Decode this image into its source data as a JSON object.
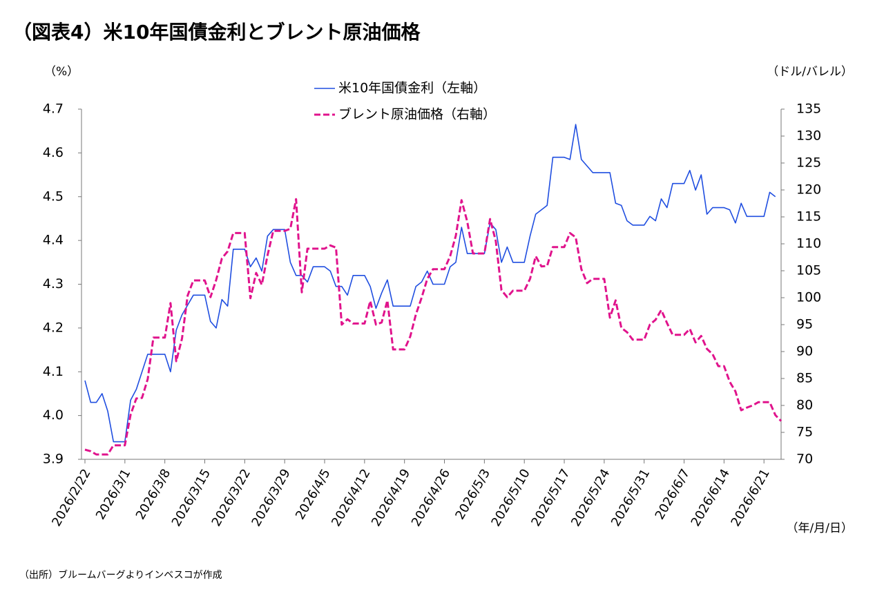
{
  "chart_data": {
    "type": "line",
    "title": "（図表4）米10年国債金利とブレント原油価格",
    "y_label": "（%）",
    "y2_label": "（ドル/バレル）",
    "x_label": "（年/月/日）",
    "source": "（出所）ブルームバーグよりインベスコが作成",
    "xlim": [
      "2026/2/22",
      "2026/6/24"
    ],
    "xticks": [
      "2026/2/22",
      "2026/3/1",
      "2026/3/8",
      "2026/3/15",
      "2026/3/22",
      "2026/3/29",
      "2026/4/5",
      "2026/4/12",
      "2026/4/19",
      "2026/4/26",
      "2026/5/3",
      "2026/5/10",
      "2026/5/17",
      "2026/5/24",
      "2026/5/31",
      "2026/6/7",
      "2026/6/14",
      "2026/6/21"
    ],
    "ylim": [
      3.9,
      4.7
    ],
    "yticks": [
      3.9,
      {
        "value": 4,
        "label": "4.0"
      },
      4.1,
      4.2,
      4.3,
      4.4,
      4.5,
      4.6,
      4.7
    ],
    "y2lim": [
      70,
      135
    ],
    "y2ticks": [
      70,
      75,
      80,
      85,
      90,
      95,
      100,
      105,
      110,
      115,
      120,
      125,
      130,
      135
    ],
    "series": [
      {
        "name": "米10年国債金利（左軸）",
        "color": "#1f4ee0",
        "dash": false,
        "x": [
          "2026/2/22",
          "2026/2/23",
          "2026/2/24",
          "2026/2/25",
          "2026/2/26",
          "2026/2/27",
          "2026/3/1",
          "2026/3/2",
          "2026/3/3",
          "2026/3/5",
          "2026/3/8",
          "2026/3/9",
          "2026/3/10",
          "2026/3/11",
          "2026/3/13",
          "2026/3/15",
          "2026/3/16",
          "2026/3/17",
          "2026/3/18",
          "2026/3/19",
          "2026/3/20",
          "2026/3/22",
          "2026/3/23",
          "2026/3/24",
          "2026/3/25",
          "2026/3/26",
          "2026/3/27",
          "2026/3/29",
          "2026/3/30",
          "2026/3/31",
          "2026/4/1",
          "2026/4/2",
          "2026/4/3",
          "2026/4/5",
          "2026/4/6",
          "2026/4/7",
          "2026/4/8",
          "2026/4/9",
          "2026/4/10",
          "2026/4/12",
          "2026/4/13",
          "2026/4/14",
          "2026/4/15",
          "2026/4/16",
          "2026/4/17",
          "2026/4/20",
          "2026/4/21",
          "2026/4/22",
          "2026/4/23",
          "2026/4/24",
          "2026/4/26",
          "2026/4/27",
          "2026/4/28",
          "2026/4/29",
          "2026/4/30",
          "2026/5/3",
          "2026/5/4",
          "2026/5/5",
          "2026/5/6",
          "2026/5/7",
          "2026/5/8",
          "2026/5/10",
          "2026/5/11",
          "2026/5/12",
          "2026/5/13",
          "2026/5/14",
          "2026/5/15",
          "2026/5/17",
          "2026/5/18",
          "2026/5/19",
          "2026/5/20",
          "2026/5/21",
          "2026/5/22",
          "2026/5/25",
          "2026/5/26",
          "2026/5/27",
          "2026/5/28",
          "2026/5/29",
          "2026/5/31",
          "2026/6/1",
          "2026/6/2",
          "2026/6/3",
          "2026/6/4",
          "2026/6/5",
          "2026/6/7",
          "2026/6/8",
          "2026/6/9",
          "2026/6/10",
          "2026/6/11",
          "2026/6/12",
          "2026/6/14",
          "2026/6/15",
          "2026/6/16",
          "2026/6/17",
          "2026/6/18",
          "2026/6/21",
          "2026/6/22",
          "2026/6/23"
        ],
        "values": [
          4.08,
          4.03,
          4.03,
          4.05,
          4.01,
          3.94,
          3.94,
          4.035,
          4.06,
          4.14,
          4.14,
          4.1,
          4.195,
          4.23,
          4.275,
          4.275,
          4.215,
          4.2,
          4.265,
          4.25,
          4.38,
          4.38,
          4.34,
          4.36,
          4.33,
          4.41,
          4.425,
          4.425,
          4.35,
          4.32,
          4.32,
          4.305,
          4.34,
          4.34,
          4.33,
          4.295,
          4.295,
          4.275,
          4.32,
          4.32,
          4.295,
          4.245,
          4.28,
          4.31,
          4.25,
          4.25,
          4.295,
          4.305,
          4.33,
          4.3,
          4.3,
          4.34,
          4.35,
          4.43,
          4.37,
          4.37,
          4.44,
          4.425,
          4.35,
          4.385,
          4.35,
          4.35,
          4.41,
          4.46,
          4.47,
          4.48,
          4.59,
          4.59,
          4.585,
          4.665,
          4.585,
          4.57,
          4.555,
          4.555,
          4.485,
          4.48,
          4.445,
          4.435,
          4.435,
          4.455,
          4.445,
          4.495,
          4.475,
          4.53,
          4.53,
          4.56,
          4.515,
          4.55,
          4.46,
          4.475,
          4.475,
          4.47,
          4.44,
          4.485,
          4.455,
          4.455,
          4.51,
          4.5
        ]
      },
      {
        "name": "ブレント原油価格（右軸）",
        "color": "#e0138c",
        "dash": true,
        "axis": "y2",
        "x": [
          "2026/2/22",
          "2026/2/23",
          "2026/2/24",
          "2026/2/26",
          "2026/2/27",
          "2026/3/1",
          "2026/3/2",
          "2026/3/3",
          "2026/3/4",
          "2026/3/5",
          "2026/3/6",
          "2026/3/8",
          "2026/3/9",
          "2026/3/10",
          "2026/3/11",
          "2026/3/12",
          "2026/3/13",
          "2026/3/15",
          "2026/3/16",
          "2026/3/17",
          "2026/3/18",
          "2026/3/19",
          "2026/3/20",
          "2026/3/22",
          "2026/3/23",
          "2026/3/24",
          "2026/3/25",
          "2026/3/26",
          "2026/3/27",
          "2026/3/29",
          "2026/3/30",
          "2026/3/31",
          "2026/4/1",
          "2026/4/2",
          "2026/4/3",
          "2026/4/5",
          "2026/4/6",
          "2026/4/7",
          "2026/4/8",
          "2026/4/9",
          "2026/4/10",
          "2026/4/12",
          "2026/4/13",
          "2026/4/14",
          "2026/4/15",
          "2026/4/16",
          "2026/4/17",
          "2026/4/19",
          "2026/4/20",
          "2026/4/21",
          "2026/4/22",
          "2026/4/23",
          "2026/4/24",
          "2026/4/26",
          "2026/4/27",
          "2026/4/28",
          "2026/4/29",
          "2026/4/30",
          "2026/5/1",
          "2026/5/3",
          "2026/5/4",
          "2026/5/5",
          "2026/5/6",
          "2026/5/7",
          "2026/5/8",
          "2026/5/10",
          "2026/5/11",
          "2026/5/12",
          "2026/5/13",
          "2026/5/14",
          "2026/5/15",
          "2026/5/17",
          "2026/5/18",
          "2026/5/19",
          "2026/5/20",
          "2026/5/21",
          "2026/5/22",
          "2026/5/24",
          "2026/5/25",
          "2026/5/26",
          "2026/5/27",
          "2026/5/28",
          "2026/5/29",
          "2026/5/31",
          "2026/6/1",
          "2026/6/2",
          "2026/6/3",
          "2026/6/4",
          "2026/6/5",
          "2026/6/7",
          "2026/6/8",
          "2026/6/9",
          "2026/6/10",
          "2026/6/11",
          "2026/6/12",
          "2026/6/13",
          "2026/6/14",
          "2026/6/15",
          "2026/6/16",
          "2026/6/17",
          "2026/6/18",
          "2026/6/19",
          "2026/6/20",
          "2026/6/21",
          "2026/6/22",
          "2026/6/23",
          "2026/6/24"
        ],
        "values": [
          71.8,
          71.5,
          70.9,
          70.9,
          72.6,
          72.6,
          78.3,
          81.3,
          81.4,
          84.9,
          92.6,
          92.6,
          99,
          88.2,
          92.4,
          100.4,
          103.2,
          103.2,
          100.1,
          103.3,
          107.3,
          108.6,
          112,
          112,
          99.9,
          104.6,
          102.4,
          107.9,
          112.4,
          112.4,
          112.8,
          118.3,
          101,
          109.1,
          109.1,
          109.1,
          109.7,
          109.3,
          95,
          96,
          95.2,
          95.2,
          99.4,
          95,
          95.4,
          99.5,
          90.4,
          90.4,
          92.8,
          96.9,
          100,
          103.5,
          105.3,
          105.3,
          107.7,
          111.5,
          118.1,
          114.1,
          108.2,
          108.2,
          114.6,
          110.5,
          101.4,
          100.1,
          101.3,
          101.3,
          103.5,
          107.7,
          105.8,
          105.9,
          109.4,
          109.4,
          112,
          111.2,
          105.3,
          102.7,
          103.5,
          103.5,
          96.3,
          99.5,
          94.4,
          93.6,
          92.2,
          92.2,
          95,
          95.9,
          97.7,
          95.3,
          93.1,
          93.1,
          94.2,
          91.7,
          92.9,
          90.5,
          89.5,
          87.3,
          87.3,
          84.4,
          82.6,
          79.1,
          79.6,
          80,
          80.6,
          80.6,
          80.6,
          78.2,
          77.1
        ]
      }
    ]
  }
}
